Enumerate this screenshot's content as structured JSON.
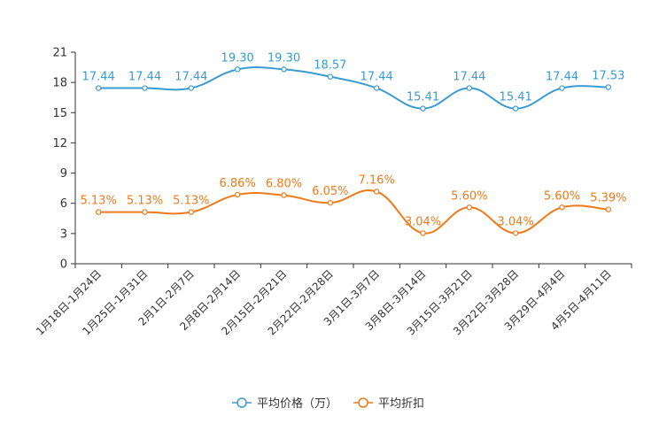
{
  "chart_data": {
    "type": "line",
    "title": "",
    "xlabel": "",
    "ylabel": "",
    "ylim": [
      0,
      21
    ],
    "yticks": [
      0,
      3,
      6,
      9,
      12,
      15,
      18,
      21
    ],
    "grid": false,
    "legend_position": "bottom-center",
    "categories": [
      "1月18日-1月24日",
      "1月25日-1月31日",
      "2月1日-2月7日",
      "2月8日-2月14日",
      "2月15日-2月21日",
      "2月22日-2月28日",
      "3月1日-3月7日",
      "3月8日-3月14日",
      "3月15日-3月21日",
      "3月22日-3月28日",
      "3月29日-4月4日",
      "4月5日-4月11日"
    ],
    "series": [
      {
        "name": "平均价格（万）",
        "color": "#3a9bd0",
        "values": [
          17.44,
          17.44,
          17.44,
          19.3,
          19.3,
          18.57,
          17.44,
          15.41,
          17.44,
          15.41,
          17.44,
          17.53
        ],
        "labels": [
          "17.44",
          "17.44",
          "17.44",
          "19.30",
          "19.30",
          "18.57",
          "17.44",
          "15.41",
          "17.44",
          "15.41",
          "17.44",
          "17.53"
        ]
      },
      {
        "name": "平均折扣",
        "color": "#f07a1a",
        "values": [
          5.13,
          5.13,
          5.13,
          6.86,
          6.8,
          6.05,
          7.16,
          3.04,
          5.6,
          3.04,
          5.6,
          5.39
        ],
        "labels": [
          "5.13%",
          "5.13%",
          "5.13%",
          "6.86%",
          "6.80%",
          "6.05%",
          "7.16%",
          "3.04%",
          "5.60%",
          "3.04%",
          "5.60%",
          "5.39%"
        ]
      }
    ]
  }
}
